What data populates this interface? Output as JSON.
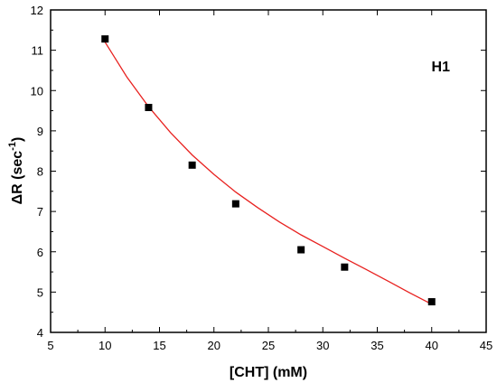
{
  "chart_data": {
    "type": "scatter",
    "title": "",
    "annotation": "H1",
    "xlabel": "[CHT] (mM)",
    "ylabel": {
      "main": "ΔR (sec",
      "superscript": "-1",
      "close": ")"
    },
    "xlim": [
      5,
      45
    ],
    "ylim": [
      4,
      12
    ],
    "xticks": [
      5,
      10,
      15,
      20,
      25,
      30,
      35,
      40,
      45
    ],
    "yticks": [
      4,
      5,
      6,
      7,
      8,
      9,
      10,
      11,
      12
    ],
    "grid": false,
    "series": [
      {
        "type": "scatter",
        "marker": "square",
        "color": "#000000",
        "x": [
          10,
          14,
          18,
          22,
          28,
          32,
          40
        ],
        "y": [
          11.28,
          9.58,
          8.15,
          7.19,
          6.05,
          5.62,
          4.76
        ]
      },
      {
        "type": "line",
        "fit": true,
        "color": "#e8211f",
        "x": [
          10,
          12,
          14,
          16,
          18,
          20,
          22,
          24,
          26,
          28,
          30,
          32,
          34,
          36,
          38,
          40
        ],
        "y": [
          11.2,
          10.34,
          9.6,
          8.96,
          8.4,
          7.92,
          7.48,
          7.1,
          6.74,
          6.42,
          6.13,
          5.84,
          5.56,
          5.27,
          4.98,
          4.7
        ]
      }
    ]
  }
}
